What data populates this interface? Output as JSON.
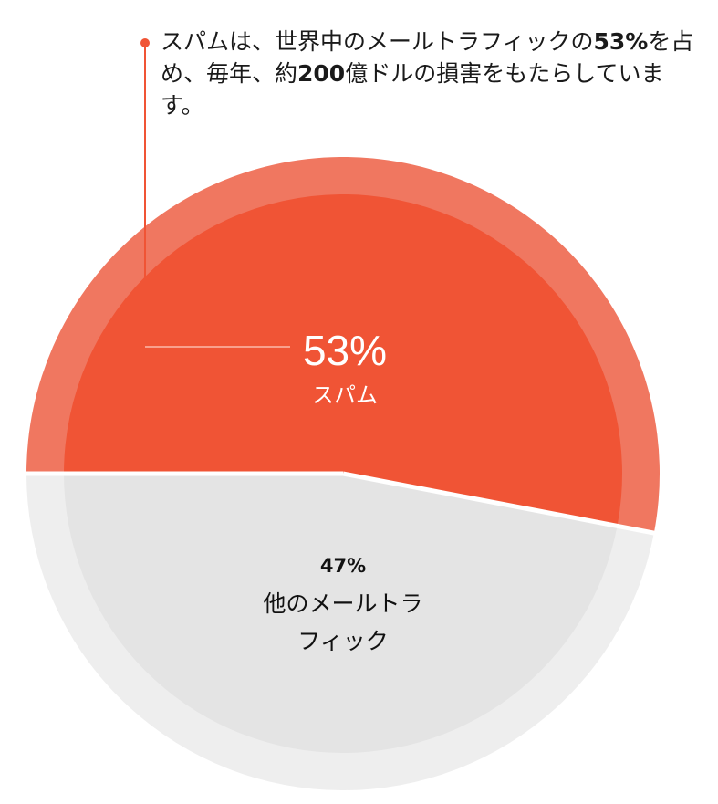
{
  "chart_data": {
    "type": "pie",
    "categories": [
      "スパム",
      "他のメールトラフィック"
    ],
    "values": [
      53,
      47
    ],
    "value_labels": [
      "53%",
      "47%"
    ],
    "colors": {
      "spam_outer": "#f07760",
      "spam_inner": "#f05435",
      "other_outer": "#eeeeee",
      "other_inner": "#e4e4e4",
      "leader_line": "#f05435"
    },
    "labels": {
      "spam_pct": "53%",
      "spam_name": "スパム",
      "other_pct": "47%",
      "other_name_line1": "他のメールトラ",
      "other_name_line2": "フィック"
    },
    "annotation": {
      "part1": "スパムは、世界中のメールトラフィックの",
      "bold1": "53%",
      "part2": "を占め、毎年、約",
      "bold2": "200",
      "part3": "億ドルの損害をもたらしています。"
    }
  }
}
